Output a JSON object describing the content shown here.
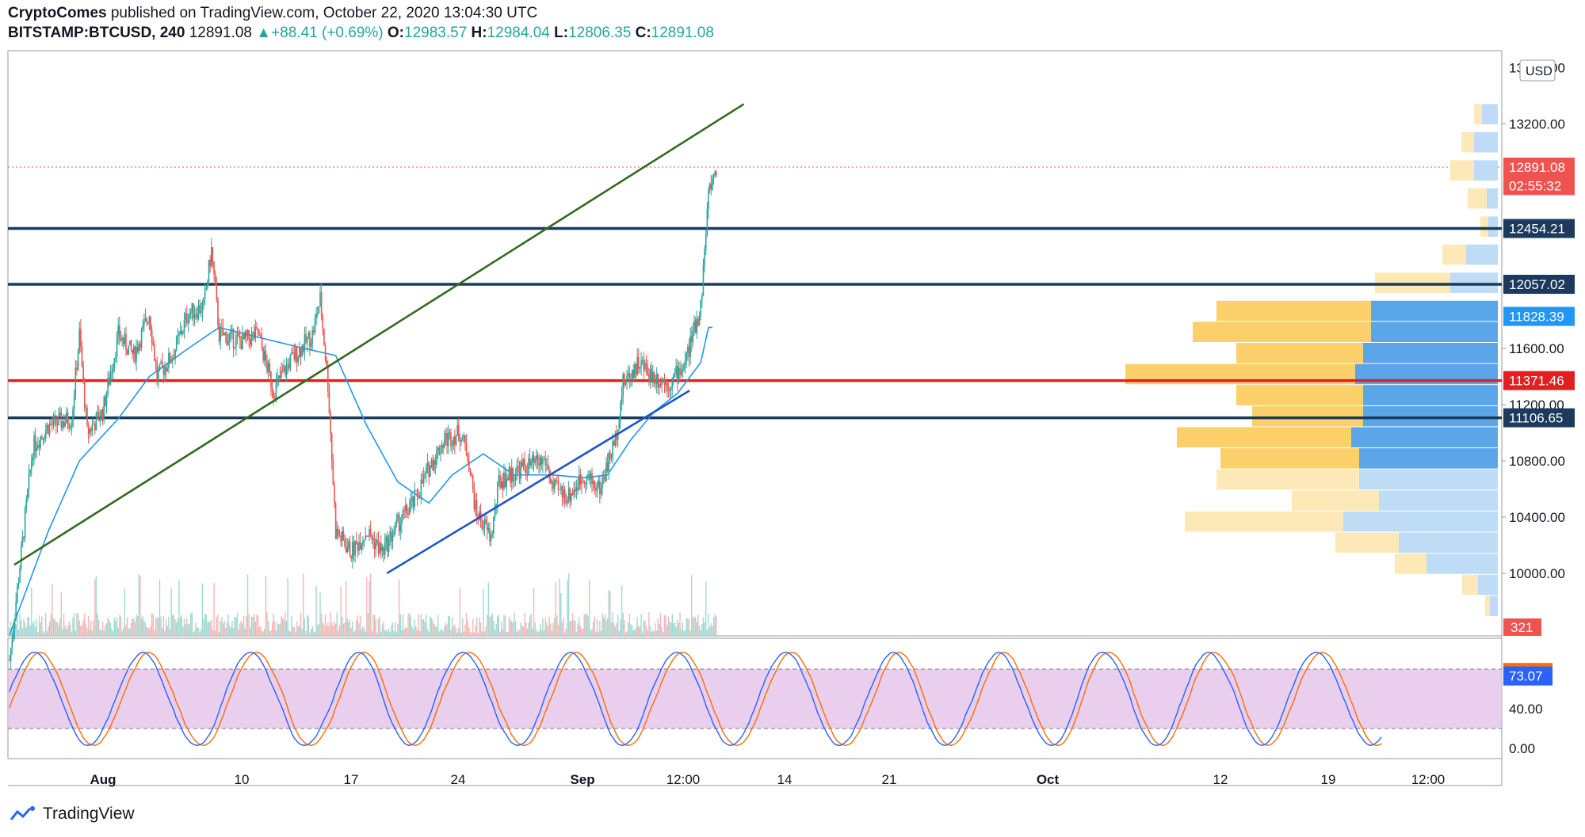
{
  "header": {
    "publisher": "CryptoComes",
    "published_text": "published on TradingView.com, October 22, 2020 13:04:30 UTC",
    "symbol": "BITSTAMP:BTCUSD, 240",
    "last": "12891.08",
    "change_arrow": "▲",
    "change": "+88.41 (+0.69%)",
    "o_label": "O:",
    "o_value": "12983.57",
    "h_label": "H:",
    "h_value": "12984.04",
    "l_label": "L:",
    "l_value": "12806.35",
    "c_label": "C:",
    "c_value": "12891.08"
  },
  "brand": {
    "name": "TradingView",
    "icon": "tradingview-logo-icon"
  },
  "colors": {
    "up": "#26a69a",
    "down": "#ef5350",
    "ma": "#2196f3",
    "trend_green": "#33691e",
    "trend_blue": "#1e56c8",
    "level_navy": "#1b3a5c",
    "level_red": "#e02020",
    "stoch_k": "#2962ff",
    "stoch_d": "#ff6d00",
    "stoch_band": "#e1bee7"
  },
  "chart_data": {
    "type": "candlestick",
    "currency_badge": "USD",
    "price_axis": {
      "ticks": [
        10000,
        10400,
        10800,
        11200,
        11600,
        13200
      ],
      "tick_labels": [
        "10000.00",
        "10400.00",
        "10800.00",
        "11200.00",
        "11600.00",
        "13200.00"
      ],
      "partial_top_label": "13600.00",
      "range": [
        9560,
        13720
      ]
    },
    "time_axis": {
      "labels": [
        "Aug",
        "10",
        "17",
        "24",
        "Sep",
        "12:00",
        "14",
        "21",
        "Oct",
        "12",
        "19",
        "12:00"
      ]
    },
    "price_tags": [
      {
        "value": "12891.08",
        "color": "#ef5350",
        "price": 12891.08
      },
      {
        "value": "02:55:32",
        "color": "#ef5350",
        "price": 12760
      },
      {
        "value": "12454.21",
        "color": "#1b3a5c",
        "price": 12454.21
      },
      {
        "value": "12057.02",
        "color": "#1b3a5c",
        "price": 12057.02
      },
      {
        "value": "11828.39",
        "color": "#2196f3",
        "price": 11828.39
      },
      {
        "value": "11371.46",
        "color": "#e02020",
        "price": 11371.46
      },
      {
        "value": "11106.65",
        "color": "#1b3a5c",
        "price": 11106.65
      }
    ],
    "volume_tag": "321",
    "horizontal_levels": [
      {
        "price": 12454.21,
        "color": "#1b3a5c"
      },
      {
        "price": 12057.02,
        "color": "#1b3a5c"
      },
      {
        "price": 11371.46,
        "color": "#e02020"
      },
      {
        "price": 11106.65,
        "color": "#1b3a5c"
      }
    ],
    "trend_lines": [
      {
        "name": "green trendline",
        "from": [
          "Jul 24",
          10060
        ],
        "to": [
          "Oct 23",
          13340
        ],
        "color": "#33691e"
      },
      {
        "name": "blue trendline",
        "from": [
          "Sep 10",
          10000
        ],
        "to": [
          "Oct 16",
          11300
        ],
        "color": "#1e56c8"
      }
    ],
    "price_path": [
      [
        "Jul 23",
        9380
      ],
      [
        "Jul 26",
        10900
      ],
      [
        "Jul 28",
        11050
      ],
      [
        "Jul 31",
        11100
      ],
      [
        "Aug 1",
        11700
      ],
      [
        "Aug 2",
        11000
      ],
      [
        "Aug 4",
        11150
      ],
      [
        "Aug 6",
        11700
      ],
      [
        "Aug 8",
        11550
      ],
      [
        "Aug 10",
        11850
      ],
      [
        "Aug 11",
        11400
      ],
      [
        "Aug 13",
        11550
      ],
      [
        "Aug 15",
        11850
      ],
      [
        "Aug 17",
        11900
      ],
      [
        "Aug 18",
        12300
      ],
      [
        "Aug 19",
        11700
      ],
      [
        "Aug 22",
        11650
      ],
      [
        "Aug 24",
        11700
      ],
      [
        "Aug 26",
        11300
      ],
      [
        "Aug 28",
        11500
      ],
      [
        "Aug 31",
        11700
      ],
      [
        "Sep 1",
        11950
      ],
      [
        "Sep 2",
        11350
      ],
      [
        "Sep 3",
        10300
      ],
      [
        "Sep 5",
        10150
      ],
      [
        "Sep 7",
        10300
      ],
      [
        "Sep 9",
        10150
      ],
      [
        "Sep 11",
        10350
      ],
      [
        "Sep 13",
        10500
      ],
      [
        "Sep 15",
        10750
      ],
      [
        "Sep 17",
        10950
      ],
      [
        "Sep 19",
        11000
      ],
      [
        "Sep 20",
        10850
      ],
      [
        "Sep 21",
        10450
      ],
      [
        "Sep 23",
        10250
      ],
      [
        "Sep 24",
        10650
      ],
      [
        "Sep 27",
        10750
      ],
      [
        "Sep 30",
        10800
      ],
      [
        "Oct 1",
        10600
      ],
      [
        "Oct 3",
        10550
      ],
      [
        "Oct 5",
        10700
      ],
      [
        "Oct 7",
        10600
      ],
      [
        "Oct 9",
        10950
      ],
      [
        "Oct 10",
        11350
      ],
      [
        "Oct 12",
        11500
      ],
      [
        "Oct 14",
        11400
      ],
      [
        "Oct 16",
        11350
      ],
      [
        "Oct 18",
        11500
      ],
      [
        "Oct 20",
        11900
      ],
      [
        "Oct 21",
        12700
      ],
      [
        "Oct 22",
        12891
      ]
    ],
    "moving_average": [
      [
        "Jul 23",
        9560
      ],
      [
        "Jul 28",
        10300
      ],
      [
        "Aug 1",
        10800
      ],
      [
        "Aug 6",
        11100
      ],
      [
        "Aug 10",
        11400
      ],
      [
        "Aug 15",
        11600
      ],
      [
        "Aug 19",
        11750
      ],
      [
        "Aug 24",
        11680
      ],
      [
        "Aug 30",
        11600
      ],
      [
        "Sep 3",
        11550
      ],
      [
        "Sep 7",
        11050
      ],
      [
        "Sep 11",
        10650
      ],
      [
        "Sep 15",
        10500
      ],
      [
        "Sep 18",
        10700
      ],
      [
        "Sep 22",
        10850
      ],
      [
        "Sep 26",
        10700
      ],
      [
        "Oct 1",
        10700
      ],
      [
        "Oct 5",
        10680
      ],
      [
        "Oct 8",
        10700
      ],
      [
        "Oct 11",
        10950
      ],
      [
        "Oct 14",
        11150
      ],
      [
        "Oct 17",
        11280
      ],
      [
        "Oct 20",
        11500
      ],
      [
        "Oct 21",
        11750
      ]
    ],
    "volume_profile_note": "visible range volume profile shown at right edge",
    "stochastic": {
      "k_value": "73.07",
      "d_value": "76.63",
      "axis_ticks": [
        40,
        0
      ],
      "axis_tick_labels": [
        "40.00",
        "0.00"
      ],
      "upper_band": 80,
      "lower_band": 20
    }
  }
}
